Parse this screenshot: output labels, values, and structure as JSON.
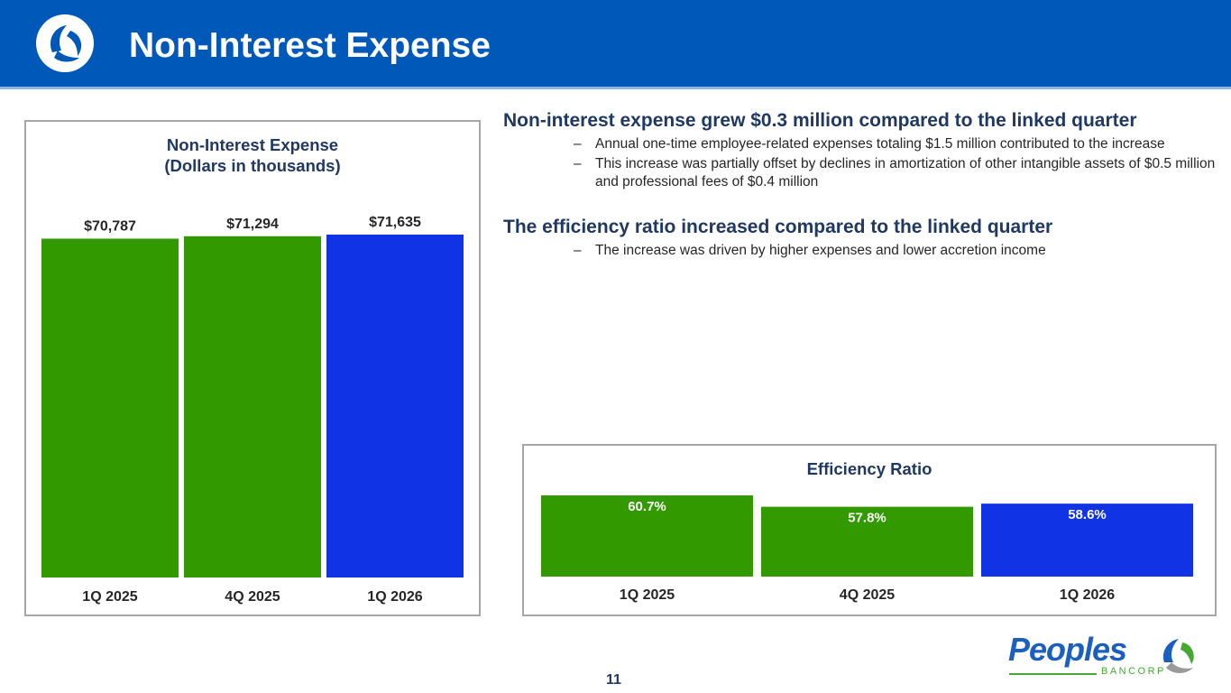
{
  "header": {
    "title": "Non-Interest Expense",
    "logo_icon": "peoples-leaf-logo-icon"
  },
  "bullets": {
    "section1": {
      "heading": "Non-interest expense grew $0.3 million compared to the linked quarter",
      "items": [
        "Annual one-time employee-related expenses totaling $1.5 million contributed to the increase",
        "This increase was partially offset by declines in amortization of other intangible assets of $0.5 million and professional fees of $0.4 million"
      ]
    },
    "section2": {
      "heading": "The efficiency ratio increased compared to the linked quarter",
      "items": [
        "The increase was driven by higher expenses and lower accretion income"
      ]
    },
    "dash": "–"
  },
  "footer": {
    "page_number": "11",
    "brand_name": "Peoples",
    "brand_sub": "BANCORP"
  },
  "colors": {
    "header_blue": "#0059b8",
    "bar_green": "#339900",
    "bar_blue": "#1133e6",
    "title_navy": "#1f3864"
  },
  "chart_data": [
    {
      "type": "bar",
      "title": "Non-Interest Expense",
      "subtitle": "(Dollars in thousands)",
      "categories": [
        "1Q 2025",
        "4Q 2025",
        "1Q 2026"
      ],
      "values": [
        70787,
        71294,
        71635
      ],
      "labels": [
        "$70,787",
        "$71,294",
        "$71,635"
      ],
      "bar_colors": [
        "#339900",
        "#339900",
        "#1133e6"
      ],
      "xlabel": "",
      "ylabel": "",
      "ylim": [
        0,
        71635
      ],
      "grid": false,
      "legend": "none",
      "label_position": "above"
    },
    {
      "type": "bar",
      "title": "Efficiency Ratio",
      "categories": [
        "1Q 2025",
        "4Q 2025",
        "1Q 2026"
      ],
      "values": [
        60.7,
        57.8,
        58.6
      ],
      "labels": [
        "60.7%",
        "57.8%",
        "58.6%"
      ],
      "bar_colors": [
        "#339900",
        "#339900",
        "#1133e6"
      ],
      "xlabel": "",
      "ylabel": "",
      "ylim": [
        40,
        60.7
      ],
      "grid": false,
      "legend": "none",
      "label_position": "inside-top"
    }
  ]
}
